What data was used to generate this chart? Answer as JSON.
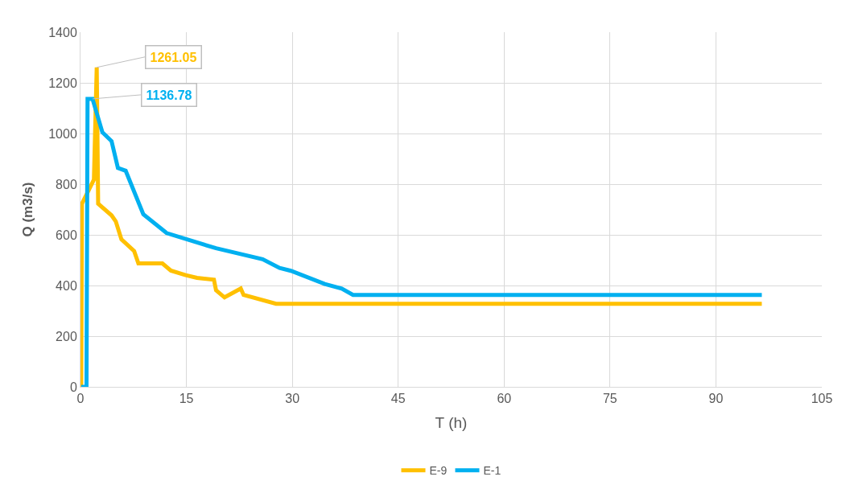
{
  "chart_data": {
    "type": "line",
    "xlabel": "T (h)",
    "ylabel": "Q (m3/s)",
    "series": [
      {
        "name": "E-9",
        "color": "#ffc000",
        "x": [
          0.1,
          0.2,
          1.9,
          2.3,
          2.5,
          4.4,
          5.0,
          5.8,
          7.6,
          8.2,
          11.6,
          12.8,
          14.9,
          16.5,
          18.9,
          19.2,
          20.4,
          22.7,
          23.1,
          27.7,
          96.5
        ],
        "values": [
          0,
          723,
          818,
          1261.05,
          723,
          677,
          653,
          582,
          536,
          487,
          487,
          459,
          441,
          430,
          423,
          381,
          353,
          388,
          363,
          328,
          328
        ]
      },
      {
        "name": "E-1",
        "color": "#00b0f0",
        "x": [
          0.1,
          0.85,
          1.0,
          1.7,
          3.1,
          4.4,
          5.3,
          6.4,
          8.9,
          12.2,
          19.2,
          25.8,
          28.2,
          29.8,
          34.6,
          37.0,
          38.6,
          96.5
        ],
        "values": [
          0,
          0,
          1136.78,
          1136.78,
          1005,
          970,
          864,
          853,
          681,
          607,
          547,
          504,
          469,
          458,
          406,
          388,
          363,
          363
        ]
      }
    ],
    "annotations": [
      {
        "text": "1261.05",
        "x": 2.3,
        "y": 1261.05
      },
      {
        "text": "1136.78",
        "x": 1.7,
        "y": 1136.78
      }
    ],
    "xlim": [
      0,
      105
    ],
    "xticks": [
      0,
      15,
      30,
      45,
      60,
      75,
      90,
      105
    ],
    "ylim": [
      0,
      1400
    ],
    "yticks": [
      0,
      200,
      400,
      600,
      800,
      1000,
      1200,
      1400
    ],
    "grid": true,
    "legend": "bottom",
    "marker": "none",
    "line_style": "solid"
  }
}
